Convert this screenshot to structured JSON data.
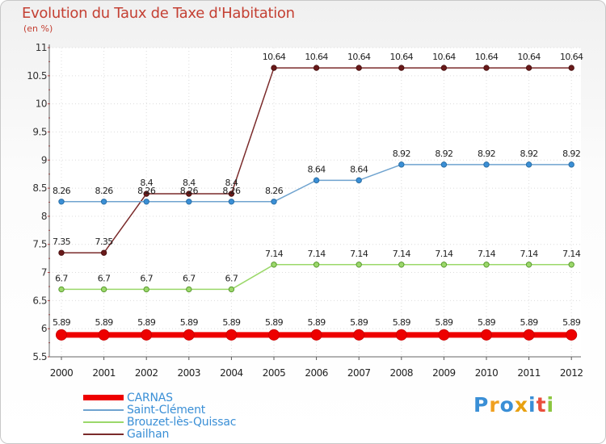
{
  "chart_data": {
    "type": "line",
    "title": "Evolution du Taux de Taxe d'Habitation",
    "subtitle": "(en %)",
    "x": [
      "2000",
      "2001",
      "2002",
      "2003",
      "2004",
      "2005",
      "2006",
      "2007",
      "2008",
      "2009",
      "2010",
      "2011",
      "2012"
    ],
    "ylim": [
      5.5,
      11
    ],
    "yticks": [
      "5.5",
      "6",
      "6.5",
      "7",
      "7.5",
      "8",
      "8.5",
      "9",
      "9.5",
      "10",
      "10.5",
      "11"
    ],
    "grid": true,
    "legend_position": "bottom-left",
    "series": [
      {
        "name": "CARNAS",
        "color": "#ee0000",
        "values": [
          5.89,
          5.89,
          5.89,
          5.89,
          5.89,
          5.89,
          5.89,
          5.89,
          5.89,
          5.89,
          5.89,
          5.89,
          5.89
        ],
        "labels": [
          "5.89",
          "5.89",
          "5.89",
          "5.89",
          "5.89",
          "5.89",
          "5.89",
          "5.89",
          "5.89",
          "5.89",
          "5.89",
          "5.89",
          "5.89"
        ]
      },
      {
        "name": "Saint-Clément",
        "color": "#6fa3cf",
        "values": [
          8.26,
          8.26,
          8.26,
          8.26,
          8.26,
          8.26,
          8.64,
          8.64,
          8.92,
          8.92,
          8.92,
          8.92,
          8.92
        ],
        "labels": [
          "8.26",
          "8.26",
          "8.26",
          "8.26",
          "8.26",
          "8.26",
          "8.64",
          "8.64",
          "8.92",
          "8.92",
          "8.92",
          "8.92",
          "8.92"
        ]
      },
      {
        "name": "Brouzet-lès-Quissac",
        "color": "#9bd86a",
        "values": [
          6.7,
          6.7,
          6.7,
          6.7,
          6.7,
          7.14,
          7.14,
          7.14,
          7.14,
          7.14,
          7.14,
          7.14,
          7.14
        ],
        "labels": [
          "6.7",
          "6.7",
          "6.7",
          "6.7",
          "6.7",
          "7.14",
          "7.14",
          "7.14",
          "7.14",
          "7.14",
          "7.14",
          "7.14",
          "7.14"
        ]
      },
      {
        "name": "Gailhan",
        "color": "#7a2a2a",
        "values": [
          7.35,
          7.35,
          8.4,
          8.4,
          8.4,
          10.64,
          10.64,
          10.64,
          10.64,
          10.64,
          10.64,
          10.64,
          10.64
        ],
        "labels": [
          "7.35",
          "7.35",
          "8.4",
          "8.4",
          "8.4",
          "10.64",
          "10.64",
          "10.64",
          "10.64",
          "10.64",
          "10.64",
          "10.64",
          "10.64"
        ]
      }
    ]
  },
  "logo": {
    "text": "Proxiti",
    "letters": [
      {
        "ch": "P",
        "color": "#3a8fd6"
      },
      {
        "ch": "r",
        "color": "#f0a020"
      },
      {
        "ch": "o",
        "color": "#3a8fd6"
      },
      {
        "ch": "x",
        "color": "#e8a010"
      },
      {
        "ch": "i",
        "color": "#3a8fd6"
      },
      {
        "ch": "t",
        "color": "#e94e3c"
      },
      {
        "ch": "i",
        "color": "#8cc63f"
      }
    ]
  }
}
